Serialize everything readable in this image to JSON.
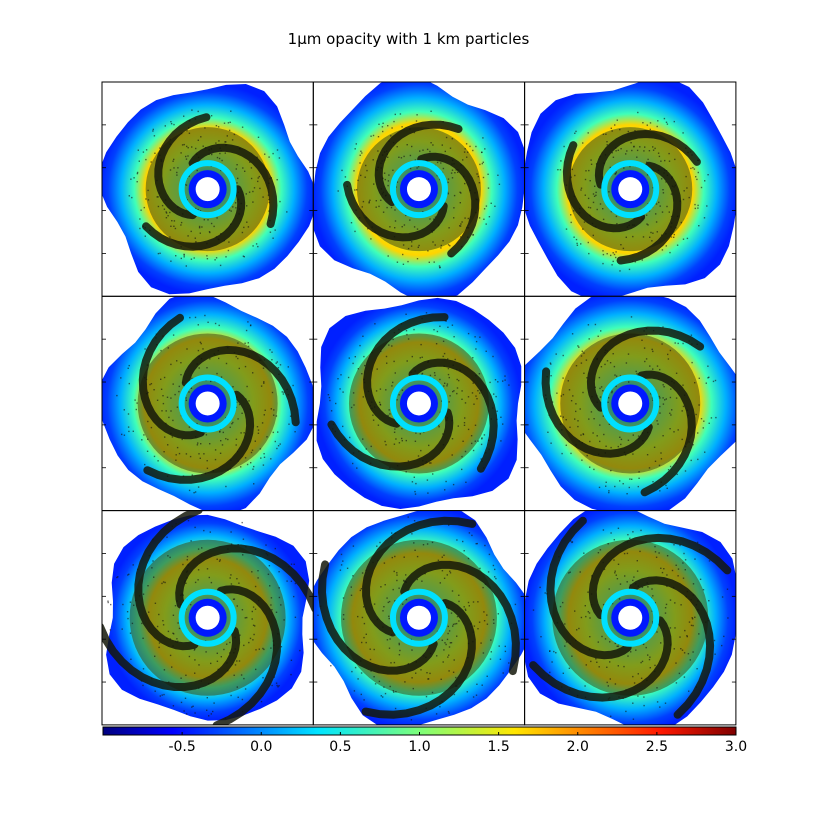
{
  "chart_data": {
    "type": "heatmap",
    "title": "1μm opacity with 1 km particles",
    "grid": "3x3 panels of dust disk snapshots",
    "panels": [
      {
        "row": 1,
        "col": 1
      },
      {
        "row": 1,
        "col": 2
      },
      {
        "row": 1,
        "col": 3
      },
      {
        "row": 2,
        "col": 1
      },
      {
        "row": 2,
        "col": 2
      },
      {
        "row": 2,
        "col": 3
      },
      {
        "row": 3,
        "col": 1
      },
      {
        "row": 3,
        "col": 2
      },
      {
        "row": 3,
        "col": 3
      }
    ],
    "colorbar": {
      "colormap": "jet",
      "range": [
        -1.0,
        3.0
      ],
      "tick_values": [
        -0.5,
        0.0,
        0.5,
        1.0,
        1.5,
        2.0,
        2.5,
        3.0
      ],
      "tick_labels": [
        "-0.5",
        "0.0",
        "0.5",
        "1.0",
        "1.5",
        "2.0",
        "2.5",
        "3.0"
      ]
    },
    "colors": {
      "low": "#00007f",
      "mid": "#7fff7f",
      "high": "#7f0000",
      "particles": "#1a1a0a"
    }
  }
}
